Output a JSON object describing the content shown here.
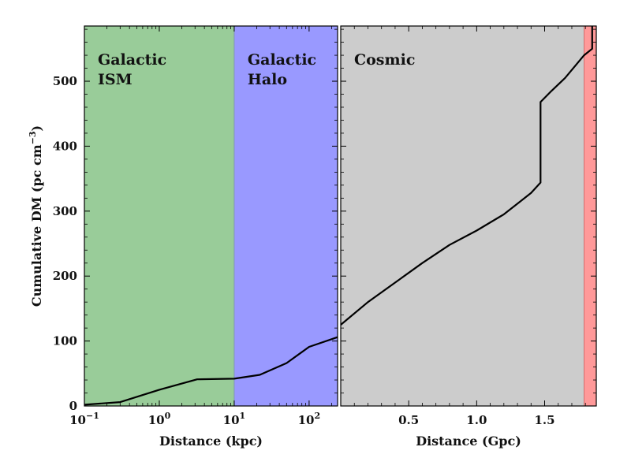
{
  "chart_data": {
    "type": "line",
    "ylabel": "Cumulative DM (pc cm",
    "ylabel_sup": "−3",
    "ylabel_end": ")",
    "ylim": [
      0,
      585
    ],
    "yticks": [
      0,
      100,
      200,
      300,
      400,
      500
    ],
    "yticks_labels": [
      "0",
      "100",
      "200",
      "300",
      "400",
      "500"
    ],
    "panels": [
      {
        "name": "galactic",
        "xlabel": "Distance (kpc)",
        "xscale": "log",
        "xlim": [
          0.1,
          240
        ],
        "xticks": [
          0.1,
          1,
          10,
          100
        ],
        "xtick_labels": [
          {
            "base": "10",
            "exp": "−1"
          },
          {
            "base": "10",
            "exp": "0"
          },
          {
            "base": "10",
            "exp": "1"
          },
          {
            "base": "10",
            "exp": "2"
          }
        ],
        "regions": [
          {
            "label_lines": [
              "Galactic",
              "ISM"
            ],
            "x_from": 0.1,
            "x_to": 10,
            "color": "#99cc99"
          },
          {
            "label_lines": [
              "Galactic",
              "Halo"
            ],
            "x_from": 10,
            "x_to": 240,
            "color": "#9999ff"
          }
        ],
        "x": [
          0.1,
          0.3,
          1,
          3.2,
          10,
          22,
          50,
          100,
          240
        ],
        "y": [
          2,
          6,
          25,
          41,
          42,
          48,
          66,
          91,
          106
        ]
      },
      {
        "name": "cosmic",
        "xlabel": "Distance (Gpc)",
        "xscale": "linear",
        "xlim": [
          0,
          1.88
        ],
        "xticks": [
          0.5,
          1.0,
          1.5
        ],
        "xtick_labels": [
          "0.5",
          "1.0",
          "1.5"
        ],
        "regions": [
          {
            "label_lines": [
              "Cosmic"
            ],
            "x_from": 0,
            "x_to": 1.79,
            "color": "#cccccc"
          },
          {
            "label_lines": [],
            "x_from": 1.79,
            "x_to": 1.88,
            "color": "#ff9999"
          }
        ],
        "x": [
          0.0,
          0.2,
          0.4,
          0.6,
          0.8,
          1.0,
          1.2,
          1.4,
          1.47,
          1.47,
          1.55,
          1.65,
          1.79,
          1.85,
          1.85
        ],
        "y": [
          125,
          160,
          190,
          220,
          248,
          270,
          295,
          328,
          344,
          468,
          485,
          505,
          540,
          550,
          585
        ]
      }
    ]
  }
}
